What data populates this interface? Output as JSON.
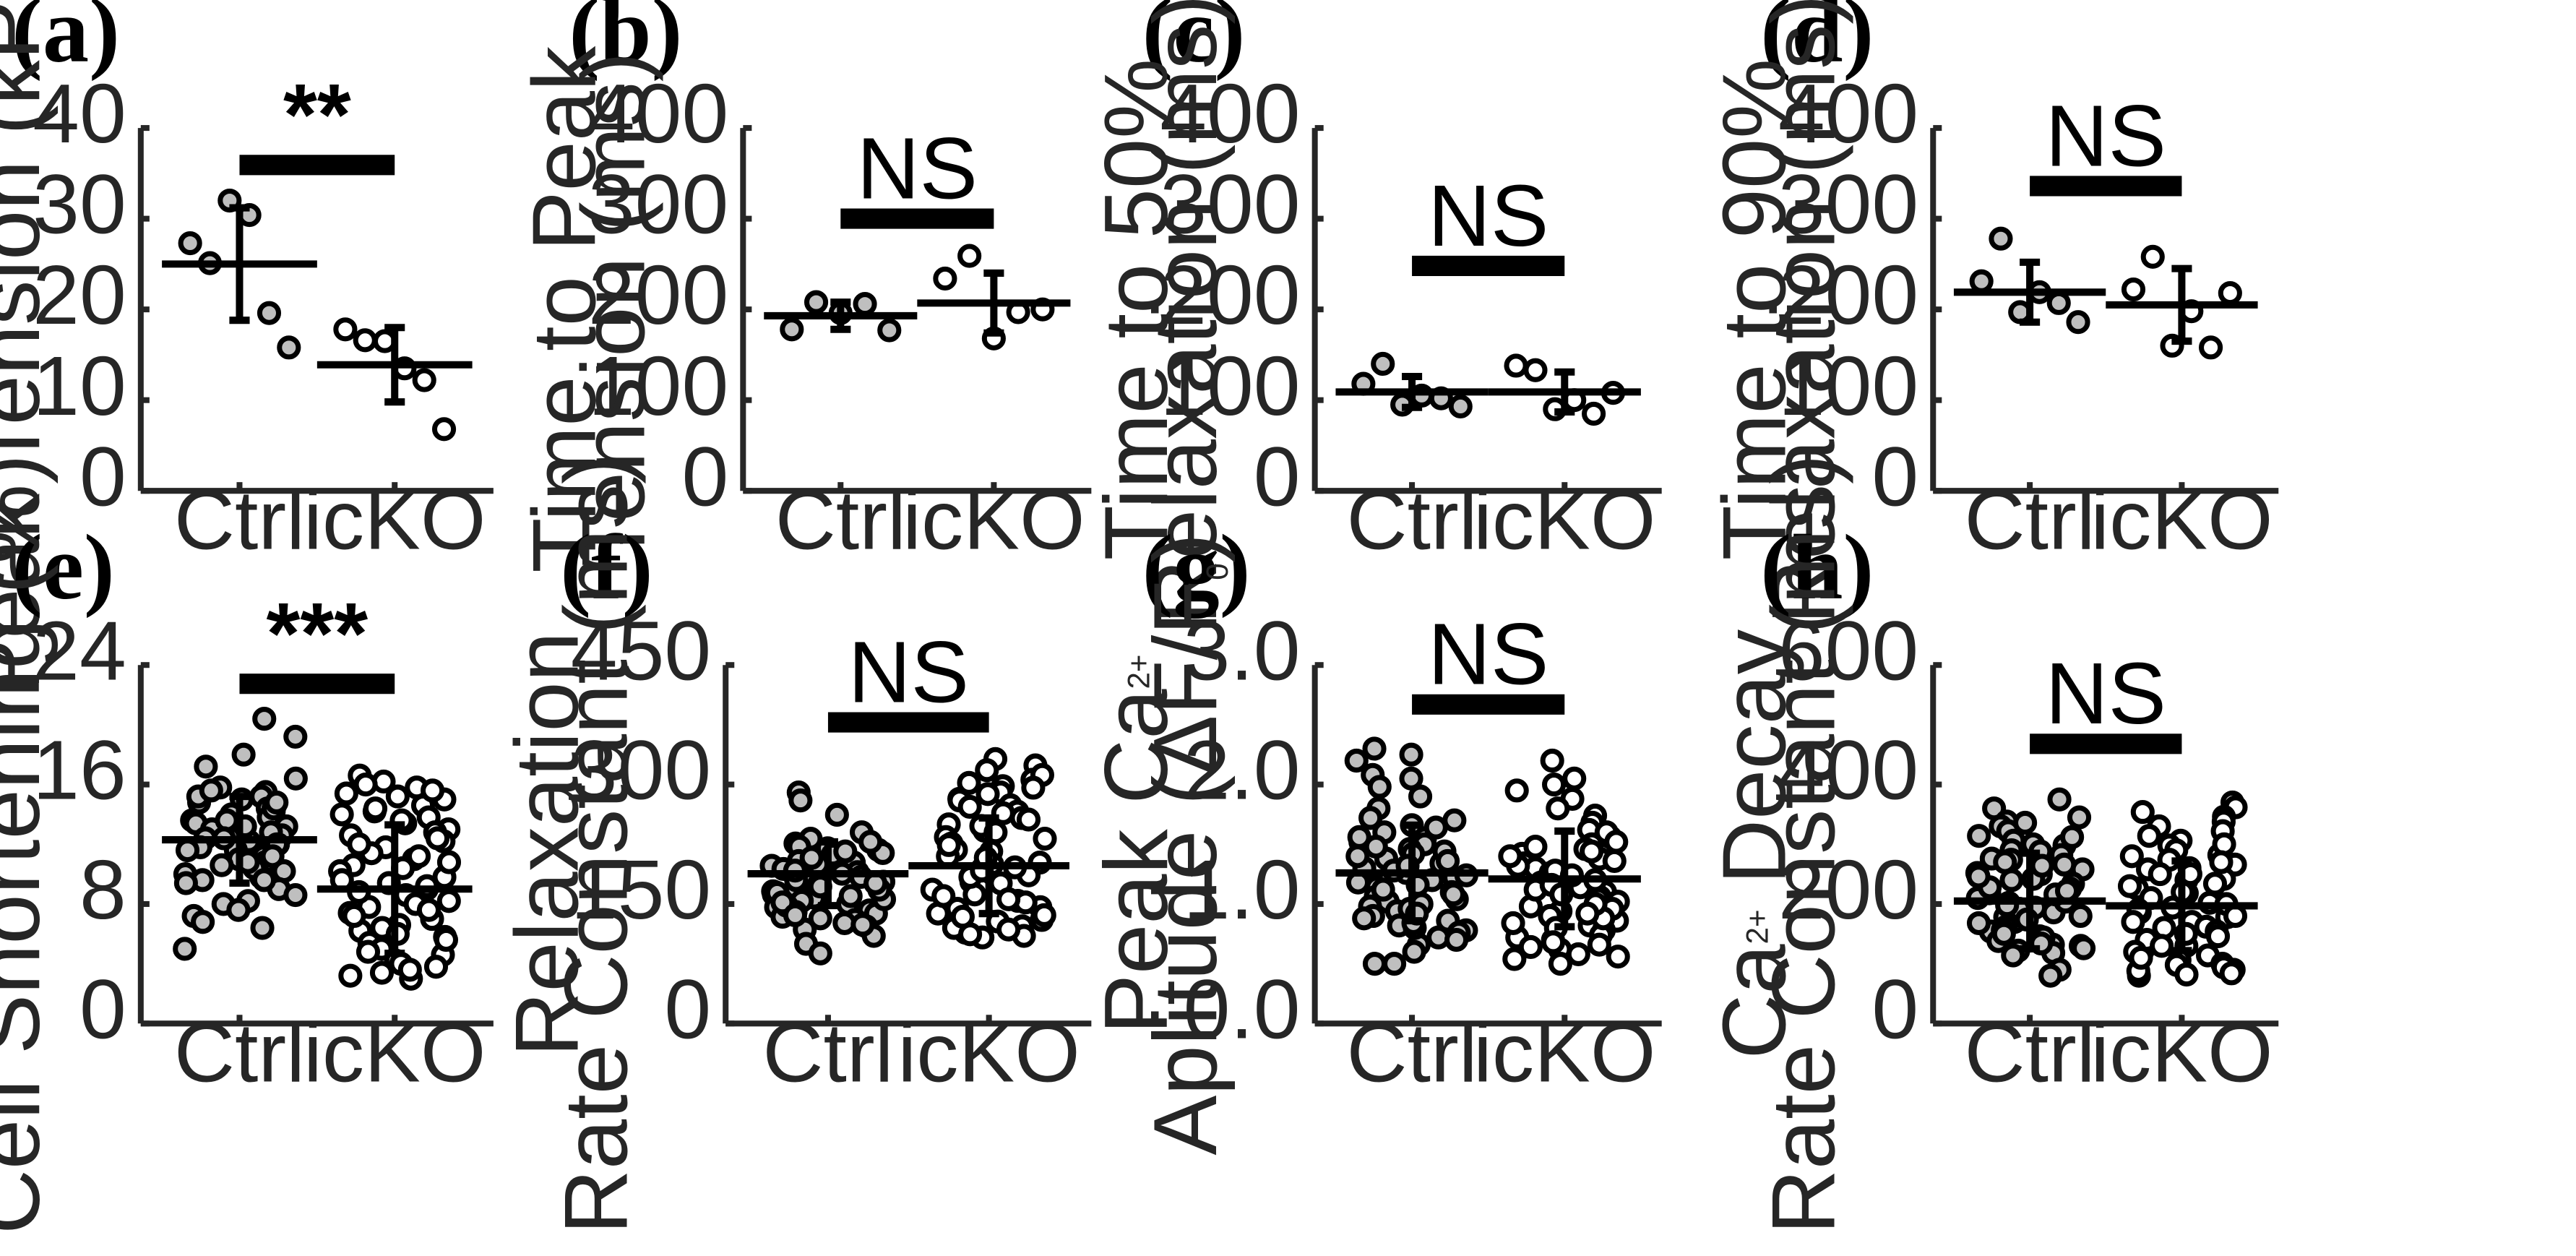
{
  "chart_data": [
    {
      "panel": "(a)",
      "type": "scatter",
      "ylabel": "Peak Tension (kPa)",
      "categories": [
        "Ctrl",
        "icKO"
      ],
      "ylim": [
        0,
        40
      ],
      "yticks": [
        "0",
        "10",
        "20",
        "30",
        "40"
      ],
      "significance": "**",
      "series": [
        {
          "category": "Ctrl",
          "values": [
            27.3,
            25.1,
            32.0,
            30.4,
            19.6,
            15.8
          ],
          "mean": 25.0,
          "sd": 6.2
        },
        {
          "category": "icKO",
          "values": [
            17.8,
            16.6,
            16.5,
            13.5,
            12.2,
            6.8
          ],
          "mean": 13.9,
          "sd": 4.1
        }
      ]
    },
    {
      "panel": "(b)",
      "type": "scatter",
      "ylabel": "Time to Peak Tension (ms)",
      "categories": [
        "Ctrl",
        "icKO"
      ],
      "ylim": [
        0,
        400
      ],
      "yticks": [
        "0",
        "100",
        "200",
        "300",
        "400"
      ],
      "significance": "NS",
      "series": [
        {
          "category": "Ctrl",
          "values": [
            178,
            208,
            196,
            206,
            177
          ],
          "mean": 193,
          "sd": 15
        },
        {
          "category": "icKO",
          "values": [
            234,
            259,
            168,
            197,
            200
          ],
          "mean": 207,
          "sd": 33
        }
      ]
    },
    {
      "panel": "(c)",
      "type": "scatter",
      "ylabel": "Time to 50% Relaxation (ms)",
      "categories": [
        "Ctrl",
        "icKO"
      ],
      "ylim": [
        0,
        400
      ],
      "yticks": [
        "0",
        "100",
        "200",
        "300",
        "400"
      ],
      "significance": "NS",
      "series": [
        {
          "category": "Ctrl",
          "values": [
            118,
            140,
            95,
            105,
            102,
            93
          ],
          "mean": 109,
          "sd": 17
        },
        {
          "category": "icKO",
          "values": [
            138,
            133,
            90,
            100,
            85,
            108
          ],
          "mean": 109,
          "sd": 22
        }
      ]
    },
    {
      "panel": "(d)",
      "type": "scatter",
      "ylabel": "Time to 90% Relaxation (ms)",
      "categories": [
        "Ctrl",
        "icKO"
      ],
      "ylim": [
        0,
        400
      ],
      "yticks": [
        "0",
        "100",
        "200",
        "300",
        "400"
      ],
      "significance": "NS",
      "series": [
        {
          "category": "Ctrl",
          "values": [
            231,
            278,
            197,
            219,
            207,
            186
          ],
          "mean": 219,
          "sd": 33
        },
        {
          "category": "icKO",
          "values": [
            222,
            258,
            160,
            198,
            158,
            218
          ],
          "mean": 205,
          "sd": 40
        }
      ]
    },
    {
      "panel": "(e)",
      "type": "scatter",
      "ylabel": "Cell Shortening (%)",
      "categories": [
        "Ctrl",
        "icKO"
      ],
      "ylim": [
        0,
        24
      ],
      "yticks": [
        "0",
        "8",
        "16",
        "24"
      ],
      "significance": "***",
      "series": [
        {
          "category": "Ctrl",
          "values": [
            20.4,
            19.2,
            18.0,
            17.2,
            16.4,
            15.8,
            15.5,
            15.2,
            15.0,
            14.8,
            14.6,
            14.4,
            14.2,
            14.0,
            13.8,
            13.6,
            13.4,
            13.2,
            13.0,
            12.8,
            12.6,
            12.4,
            12.2,
            12.0,
            11.8,
            11.6,
            11.4,
            11.2,
            11.0,
            10.8,
            10.6,
            10.4,
            10.2,
            10.0,
            9.8,
            9.6,
            9.4,
            9.0,
            8.6,
            8.2,
            8.0,
            7.6,
            7.2,
            6.8,
            6.4,
            5.0,
            15.2,
            14.4,
            13.6,
            12.8,
            12.0,
            11.2,
            10.4,
            9.6,
            13.2,
            14.8,
            12.4,
            11.6,
            10.8,
            15.6
          ],
          "mean": 12.3,
          "sd": 2.9
        },
        {
          "category": "icKO",
          "values": [
            16.6,
            16.2,
            15.8,
            15.4,
            15.0,
            14.6,
            14.2,
            13.8,
            13.4,
            13.0,
            12.6,
            12.2,
            11.8,
            11.4,
            11.0,
            10.6,
            10.2,
            9.8,
            9.4,
            9.0,
            8.6,
            8.2,
            7.8,
            7.4,
            7.0,
            6.6,
            6.2,
            5.8,
            5.4,
            5.0,
            4.6,
            4.2,
            3.8,
            3.4,
            3.0,
            16.0,
            15.2,
            14.4,
            13.6,
            12.8,
            12.0,
            11.2,
            10.4,
            9.6,
            8.8,
            8.0,
            7.2,
            6.4,
            5.6,
            4.8,
            4.0,
            3.2,
            15.6,
            12.4,
            9.2,
            6.0,
            3.6,
            14.0,
            10.8,
            7.6
          ],
          "mean": 9.0,
          "sd": 4.3
        }
      ]
    },
    {
      "panel": "(f)",
      "type": "scatter",
      "ylabel": "Relaxation Rate Constant (ms)",
      "categories": [
        "Ctrl",
        "icKO"
      ],
      "ylim": [
        0,
        450
      ],
      "yticks": [
        "0",
        "150",
        "300",
        "450"
      ],
      "significance": "NS",
      "series": [
        {
          "category": "Ctrl",
          "values": [
            290,
            280,
            262,
            240,
            232,
            226,
            222,
            218,
            214,
            210,
            206,
            202,
            198,
            194,
            190,
            186,
            182,
            178,
            174,
            170,
            166,
            162,
            158,
            154,
            150,
            146,
            142,
            138,
            134,
            130,
            126,
            122,
            118,
            110,
            100,
            88,
            228,
            220,
            212,
            204,
            196,
            188,
            180,
            172,
            164,
            156,
            148,
            140,
            132,
            124,
            216,
            200,
            184,
            168,
            152,
            136,
            208,
            192,
            176,
            160
          ],
          "mean": 188,
          "sd": 40
        },
        {
          "category": "icKO",
          "values": [
            332,
            324,
            318,
            306,
            298,
            290,
            282,
            274,
            266,
            258,
            250,
            242,
            234,
            226,
            218,
            210,
            202,
            194,
            186,
            178,
            170,
            162,
            154,
            146,
            138,
            130,
            122,
            114,
            108,
            312,
            296,
            280,
            264,
            248,
            232,
            216,
            200,
            184,
            168,
            152,
            136,
            120,
            110,
            288,
            256,
            224,
            192,
            160,
            128,
            240,
            208,
            176,
            144,
            112,
            272,
            196,
            156,
            134,
            118,
            302
          ],
          "mean": 198,
          "sd": 60
        }
      ]
    },
    {
      "panel": "(g)",
      "type": "scatter",
      "ylabel": "Peak Ca2+ Aplitude (ΔF/F0)",
      "categories": [
        "Ctrl",
        "icKO"
      ],
      "ylim": [
        0,
        3
      ],
      "yticks": [
        "0.0",
        "1.0",
        "2.0",
        "3.0"
      ],
      "significance": "NS",
      "series": [
        {
          "category": "Ctrl",
          "values": [
            2.3,
            2.25,
            2.2,
            2.08,
            1.98,
            1.9,
            1.8,
            1.72,
            1.66,
            1.6,
            1.55,
            1.5,
            1.46,
            1.42,
            1.38,
            1.34,
            1.3,
            1.26,
            1.22,
            1.18,
            1.14,
            1.1,
            1.06,
            1.02,
            0.98,
            0.94,
            0.9,
            0.86,
            0.82,
            0.78,
            0.72,
            0.66,
            0.6,
            0.5,
            0.5,
            1.52,
            1.44,
            1.36,
            1.28,
            1.2,
            1.12,
            1.04,
            0.96,
            0.88,
            0.8,
            1.48,
            1.32,
            1.16,
            1.0,
            0.84,
            1.4,
            1.24,
            1.08,
            0.92,
            1.56,
            1.64,
            1.7,
            0.76,
            0.7,
            2.05
          ],
          "mean": 1.26,
          "sd": 0.4
        },
        {
          "category": "icKO",
          "values": [
            2.2,
            2.05,
            2.0,
            1.95,
            1.88,
            1.8,
            1.74,
            1.68,
            1.62,
            1.56,
            1.5,
            1.46,
            1.42,
            1.38,
            1.34,
            1.3,
            1.26,
            1.22,
            1.18,
            1.14,
            1.1,
            1.06,
            1.02,
            0.98,
            0.94,
            0.9,
            0.86,
            0.82,
            0.78,
            0.74,
            0.7,
            0.66,
            0.62,
            0.58,
            0.54,
            0.5,
            1.6,
            1.52,
            1.44,
            1.36,
            1.28,
            1.2,
            1.12,
            1.04,
            0.96,
            0.88,
            0.8,
            0.72,
            0.64,
            0.56,
            1.48,
            1.32,
            1.16,
            1.0,
            0.84,
            0.68,
            1.4,
            1.24,
            1.08,
            0.92
          ],
          "mean": 1.21,
          "sd": 0.4
        }
      ]
    },
    {
      "panel": "(h)",
      "type": "scatter",
      "ylabel": "Ca2+ Decay Rate Constant (ms)",
      "categories": [
        "Ctrl",
        "icKO"
      ],
      "ylim": [
        0,
        600
      ],
      "yticks": [
        "0",
        "200",
        "400",
        "600"
      ],
      "significance": "NS",
      "series": [
        {
          "category": "Ctrl",
          "values": [
            375,
            360,
            345,
            338,
            330,
            322,
            314,
            306,
            298,
            290,
            282,
            274,
            266,
            258,
            250,
            242,
            234,
            226,
            218,
            210,
            202,
            194,
            186,
            178,
            170,
            162,
            154,
            146,
            138,
            130,
            122,
            114,
            300,
            276,
            252,
            228,
            204,
            180,
            156,
            132,
            118,
            288,
            264,
            240,
            216,
            192,
            168,
            144,
            126,
            336,
            312,
            270,
            246,
            222,
            198,
            174,
            150,
            134,
            90,
            80
          ],
          "mean": 205,
          "sd": 80
        },
        {
          "category": "icKO",
          "values": [
            370,
            362,
            354,
            346,
            338,
            330,
            322,
            314,
            306,
            298,
            290,
            282,
            274,
            266,
            258,
            250,
            242,
            234,
            226,
            218,
            210,
            202,
            194,
            186,
            178,
            170,
            162,
            154,
            146,
            138,
            130,
            122,
            114,
            106,
            98,
            90,
            82,
            80,
            300,
            280,
            260,
            240,
            220,
            200,
            180,
            160,
            140,
            120,
            100,
            88,
            270,
            230,
            190,
            150,
            110,
            94,
            250,
            170,
            130,
            84
          ],
          "mean": 197,
          "sd": 75
        }
      ]
    }
  ]
}
